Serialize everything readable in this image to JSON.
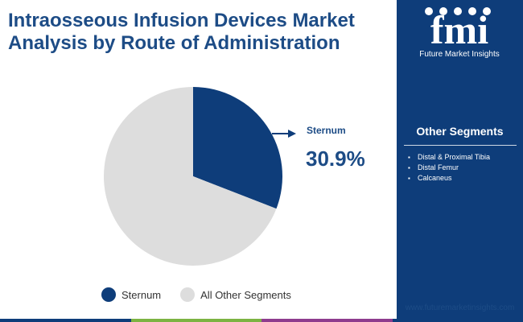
{
  "title_line1": "Intraosseous Infusion Devices Market",
  "title_line2": "Analysis by Route of Administration",
  "logo": {
    "letters": "fmi",
    "brand_name": "Future Market Insights"
  },
  "other_segments": {
    "title": "Other Segments",
    "items": [
      "Distal & Proximal Tibia",
      "Distal Femur",
      "Calcaneus"
    ]
  },
  "footer_url": "www.futuremarketinsights.com",
  "colors": {
    "primary": "#0e3d7a",
    "title": "#1d4c86",
    "other": "#dddddd",
    "footer_bar": [
      "#0e3d7a",
      "#7cb342",
      "#8e3c8e",
      "#0e3d7a"
    ]
  },
  "chart_data": {
    "type": "pie",
    "slices": [
      {
        "label": "Sternum",
        "value": 30.9,
        "color": "#0e3d7a"
      },
      {
        "label": "All Other Segments",
        "value": 69.1,
        "color": "#dddddd"
      }
    ],
    "callout": {
      "label": "Sternum",
      "value_text": "30.9%"
    },
    "legend": [
      "Sternum",
      "All Other Segments"
    ],
    "legend_position": "bottom"
  }
}
